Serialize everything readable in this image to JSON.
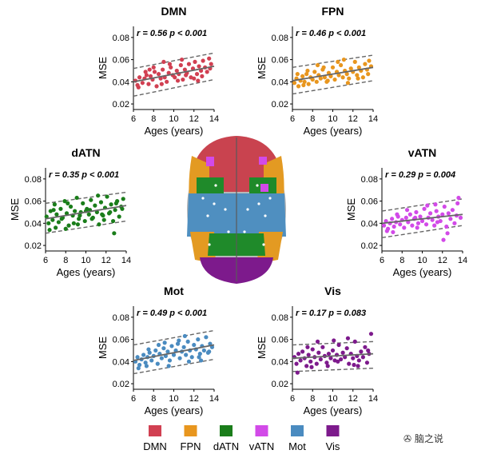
{
  "chart_data": [
    {
      "type": "scatter",
      "title": "DMN",
      "color": "#d14052",
      "xlabel": "Ages (years)",
      "ylabel": "MSE",
      "xlim": [
        6,
        14
      ],
      "ylim": [
        0.015,
        0.09
      ],
      "xticks": [
        "6",
        "8",
        "10",
        "12",
        "14"
      ],
      "yticks": [
        "0.02",
        "0.04",
        "0.06",
        "0.08"
      ],
      "stat_text": "r = 0.56  p < 0.001",
      "fit": {
        "x": [
          6,
          14
        ],
        "y": [
          0.04,
          0.054
        ]
      },
      "band": {
        "upper": [
          0.052,
          0.066
        ],
        "lower": [
          0.027,
          0.042
        ]
      },
      "x": [
        6.2,
        6.4,
        6.6,
        6.9,
        7.1,
        7.3,
        7.5,
        7.7,
        7.9,
        8.1,
        8.3,
        8.5,
        8.7,
        8.9,
        9.1,
        9.3,
        9.5,
        9.7,
        9.9,
        10.1,
        10.3,
        10.5,
        10.7,
        10.9,
        11.1,
        11.3,
        11.5,
        11.7,
        11.9,
        12.1,
        12.3,
        12.5,
        12.7,
        12.9,
        13.1,
        13.3,
        13.5,
        13.7,
        6.5,
        7.2,
        8.0,
        8.8,
        9.6,
        10.4,
        11.2,
        12.0,
        12.8,
        13.6,
        7.6,
        9.0,
        10.8,
        12.4
      ],
      "y": [
        0.041,
        0.037,
        0.044,
        0.039,
        0.043,
        0.046,
        0.038,
        0.045,
        0.042,
        0.049,
        0.036,
        0.047,
        0.043,
        0.051,
        0.044,
        0.04,
        0.048,
        0.053,
        0.046,
        0.044,
        0.05,
        0.047,
        0.055,
        0.042,
        0.051,
        0.048,
        0.056,
        0.044,
        0.052,
        0.058,
        0.047,
        0.054,
        0.05,
        0.059,
        0.053,
        0.049,
        0.061,
        0.056,
        0.035,
        0.049,
        0.053,
        0.038,
        0.056,
        0.041,
        0.046,
        0.043,
        0.045,
        0.052,
        0.051,
        0.058,
        0.06,
        0.041
      ]
    },
    {
      "type": "scatter",
      "title": "FPN",
      "color": "#e8961e",
      "xlabel": "Ages (years)",
      "ylabel": "MSE",
      "xlim": [
        6,
        14
      ],
      "ylim": [
        0.015,
        0.09
      ],
      "xticks": [
        "6",
        "8",
        "10",
        "12",
        "14"
      ],
      "yticks": [
        "0.02",
        "0.04",
        "0.06",
        "0.08"
      ],
      "stat_text": "r = 0.46  p < 0.001",
      "fit": {
        "x": [
          6,
          14
        ],
        "y": [
          0.041,
          0.053
        ]
      },
      "band": {
        "upper": [
          0.053,
          0.064
        ],
        "lower": [
          0.029,
          0.041
        ]
      },
      "x": [
        6.2,
        6.4,
        6.6,
        6.8,
        7.0,
        7.2,
        7.4,
        7.6,
        7.8,
        8.0,
        8.2,
        8.4,
        8.6,
        8.8,
        9.0,
        9.2,
        9.4,
        9.6,
        9.8,
        10.0,
        10.2,
        10.4,
        10.6,
        10.8,
        11.0,
        11.2,
        11.4,
        11.6,
        11.8,
        12.0,
        12.2,
        12.4,
        12.6,
        12.8,
        13.0,
        13.2,
        13.4,
        13.6,
        13.8,
        6.5,
        7.5,
        8.5,
        9.5,
        10.5,
        11.5,
        12.5,
        13.5,
        7.1,
        9.1,
        11.1
      ],
      "y": [
        0.039,
        0.043,
        0.036,
        0.041,
        0.045,
        0.04,
        0.047,
        0.038,
        0.044,
        0.042,
        0.049,
        0.04,
        0.046,
        0.043,
        0.051,
        0.044,
        0.04,
        0.048,
        0.045,
        0.053,
        0.042,
        0.049,
        0.046,
        0.055,
        0.044,
        0.05,
        0.047,
        0.043,
        0.052,
        0.049,
        0.058,
        0.046,
        0.053,
        0.05,
        0.044,
        0.056,
        0.051,
        0.059,
        0.054,
        0.047,
        0.05,
        0.055,
        0.041,
        0.058,
        0.039,
        0.043,
        0.047,
        0.037,
        0.053,
        0.06
      ]
    },
    {
      "type": "scatter",
      "title": "dATN",
      "color": "#1a7d1a",
      "xlabel": "Ages (years)",
      "ylabel": "MSE",
      "xlim": [
        6,
        14
      ],
      "ylim": [
        0.015,
        0.09
      ],
      "xticks": [
        "6",
        "8",
        "10",
        "12",
        "14"
      ],
      "yticks": [
        "0.02",
        "0.04",
        "0.06",
        "0.08"
      ],
      "stat_text": "r = 0.35  p < 0.001",
      "fit": {
        "x": [
          6,
          14
        ],
        "y": [
          0.044,
          0.056
        ]
      },
      "band": {
        "upper": [
          0.058,
          0.068
        ],
        "lower": [
          0.031,
          0.042
        ]
      },
      "x": [
        6.1,
        6.3,
        6.5,
        6.7,
        6.9,
        7.1,
        7.3,
        7.5,
        7.7,
        7.9,
        8.1,
        8.3,
        8.5,
        8.7,
        8.9,
        9.1,
        9.3,
        9.5,
        9.7,
        9.9,
        10.1,
        10.3,
        10.5,
        10.7,
        10.9,
        11.1,
        11.3,
        11.5,
        11.7,
        11.9,
        12.1,
        12.3,
        12.5,
        12.7,
        12.9,
        13.1,
        13.3,
        13.5,
        13.7,
        6.4,
        7.0,
        7.6,
        8.2,
        8.8,
        9.4,
        10.0,
        10.6,
        11.2,
        11.8,
        12.4,
        13.0,
        13.6,
        6.8,
        8.0,
        9.2,
        10.4,
        11.6,
        12.8
      ],
      "y": [
        0.046,
        0.04,
        0.051,
        0.043,
        0.057,
        0.048,
        0.041,
        0.053,
        0.045,
        0.06,
        0.049,
        0.038,
        0.055,
        0.047,
        0.051,
        0.063,
        0.044,
        0.05,
        0.058,
        0.042,
        0.053,
        0.048,
        0.061,
        0.045,
        0.056,
        0.05,
        0.039,
        0.059,
        0.047,
        0.054,
        0.064,
        0.049,
        0.057,
        0.042,
        0.052,
        0.06,
        0.046,
        0.055,
        0.062,
        0.034,
        0.036,
        0.044,
        0.058,
        0.04,
        0.047,
        0.051,
        0.044,
        0.065,
        0.043,
        0.05,
        0.058,
        0.053,
        0.052,
        0.035,
        0.039,
        0.052,
        0.048,
        0.031
      ]
    },
    {
      "type": "scatter",
      "title": "vATN",
      "color": "#d24ae8",
      "xlabel": "Ages (years)",
      "ylabel": "MSE",
      "xlim": [
        6,
        14
      ],
      "ylim": [
        0.015,
        0.09
      ],
      "xticks": [
        "6",
        "8",
        "10",
        "12",
        "14"
      ],
      "yticks": [
        "0.02",
        "0.04",
        "0.06",
        "0.08"
      ],
      "stat_text": "r = 0.29  p = 0.004",
      "fit": {
        "x": [
          6,
          14
        ],
        "y": [
          0.04,
          0.048
        ]
      },
      "band": {
        "upper": [
          0.051,
          0.062
        ],
        "lower": [
          0.027,
          0.038
        ]
      },
      "x": [
        6.2,
        6.4,
        6.6,
        6.8,
        7.0,
        7.2,
        7.4,
        7.6,
        7.8,
        8.0,
        8.2,
        8.4,
        8.6,
        8.8,
        9.0,
        9.2,
        9.4,
        9.6,
        9.8,
        10.0,
        10.2,
        10.4,
        10.6,
        10.8,
        11.0,
        11.2,
        11.4,
        11.6,
        11.8,
        12.0,
        12.2,
        12.4,
        12.6,
        12.8,
        13.0,
        13.2,
        13.4,
        13.6,
        13.8,
        6.5,
        7.5,
        8.5,
        9.5,
        10.5,
        11.5,
        12.5,
        13.5,
        7.1,
        9.3,
        11.3,
        12.1
      ],
      "y": [
        0.038,
        0.042,
        0.035,
        0.04,
        0.044,
        0.037,
        0.041,
        0.046,
        0.039,
        0.043,
        0.036,
        0.045,
        0.041,
        0.048,
        0.038,
        0.044,
        0.05,
        0.04,
        0.046,
        0.042,
        0.053,
        0.039,
        0.045,
        0.049,
        0.043,
        0.038,
        0.051,
        0.046,
        0.042,
        0.048,
        0.055,
        0.037,
        0.049,
        0.044,
        0.052,
        0.04,
        0.047,
        0.063,
        0.045,
        0.033,
        0.048,
        0.052,
        0.036,
        0.056,
        0.041,
        0.031,
        0.058,
        0.032,
        0.045,
        0.057,
        0.025
      ]
    },
    {
      "type": "scatter",
      "title": "Mot",
      "color": "#4a8bc0",
      "xlabel": "Ages (years)",
      "ylabel": "MSE",
      "xlim": [
        6,
        14
      ],
      "ylim": [
        0.015,
        0.09
      ],
      "xticks": [
        "6",
        "8",
        "10",
        "12",
        "14"
      ],
      "yticks": [
        "0.02",
        "0.04",
        "0.06",
        "0.08"
      ],
      "stat_text": "r = 0.49  p < 0.001",
      "fit": {
        "x": [
          6,
          14
        ],
        "y": [
          0.041,
          0.055
        ]
      },
      "band": {
        "upper": [
          0.055,
          0.068
        ],
        "lower": [
          0.029,
          0.042
        ]
      },
      "x": [
        6.2,
        6.4,
        6.6,
        6.8,
        7.0,
        7.2,
        7.4,
        7.6,
        7.8,
        8.0,
        8.2,
        8.4,
        8.6,
        8.8,
        9.0,
        9.2,
        9.4,
        9.6,
        9.8,
        10.0,
        10.2,
        10.4,
        10.6,
        10.8,
        11.0,
        11.2,
        11.4,
        11.6,
        11.8,
        12.0,
        12.2,
        12.4,
        12.6,
        12.8,
        13.0,
        13.2,
        13.4,
        13.6,
        13.8,
        6.5,
        7.5,
        8.5,
        9.5,
        10.5,
        11.5,
        12.5,
        13.5,
        7.3,
        9.1,
        11.1,
        12.7
      ],
      "y": [
        0.04,
        0.044,
        0.037,
        0.042,
        0.046,
        0.039,
        0.044,
        0.048,
        0.041,
        0.045,
        0.05,
        0.038,
        0.047,
        0.043,
        0.052,
        0.045,
        0.049,
        0.041,
        0.054,
        0.046,
        0.05,
        0.056,
        0.043,
        0.049,
        0.053,
        0.046,
        0.058,
        0.05,
        0.044,
        0.055,
        0.051,
        0.06,
        0.047,
        0.054,
        0.05,
        0.062,
        0.048,
        0.056,
        0.053,
        0.034,
        0.051,
        0.055,
        0.036,
        0.059,
        0.04,
        0.044,
        0.049,
        0.036,
        0.057,
        0.063,
        0.041
      ]
    },
    {
      "type": "scatter",
      "title": "Vis",
      "color": "#7d1a8c",
      "xlabel": "Ages (years)",
      "ylabel": "MSE",
      "xlim": [
        6,
        14
      ],
      "ylim": [
        0.015,
        0.09
      ],
      "xticks": [
        "6",
        "8",
        "10",
        "12",
        "14"
      ],
      "yticks": [
        "0.02",
        "0.04",
        "0.06",
        "0.08"
      ],
      "stat_text": "r = 0.17  p = 0.083",
      "fit": {
        "x": [
          6,
          14
        ],
        "y": [
          0.043,
          0.047
        ]
      },
      "band": {
        "upper": [
          0.055,
          0.058
        ],
        "lower": [
          0.031,
          0.034
        ]
      },
      "x": [
        6.2,
        6.4,
        6.6,
        6.8,
        7.0,
        7.2,
        7.4,
        7.6,
        7.8,
        8.0,
        8.2,
        8.4,
        8.6,
        8.8,
        9.0,
        9.2,
        9.4,
        9.6,
        9.8,
        10.0,
        10.2,
        10.4,
        10.6,
        10.8,
        11.0,
        11.2,
        11.4,
        11.6,
        11.8,
        12.0,
        12.2,
        12.4,
        12.6,
        12.8,
        13.0,
        13.2,
        13.4,
        13.6,
        13.8,
        6.5,
        7.5,
        8.5,
        9.5,
        10.5,
        11.5,
        12.5,
        13.5,
        7.9,
        10.1,
        12.1
      ],
      "y": [
        0.044,
        0.038,
        0.047,
        0.041,
        0.049,
        0.043,
        0.036,
        0.046,
        0.04,
        0.051,
        0.044,
        0.038,
        0.048,
        0.042,
        0.053,
        0.045,
        0.039,
        0.047,
        0.043,
        0.05,
        0.041,
        0.046,
        0.055,
        0.042,
        0.048,
        0.044,
        0.052,
        0.038,
        0.047,
        0.043,
        0.058,
        0.045,
        0.041,
        0.049,
        0.044,
        0.053,
        0.039,
        0.047,
        0.065,
        0.03,
        0.053,
        0.058,
        0.036,
        0.04,
        0.061,
        0.036,
        0.05,
        0.035,
        0.059,
        0.037
      ]
    }
  ],
  "legend": [
    {
      "label": "DMN",
      "color": "#d14052"
    },
    {
      "label": "FPN",
      "color": "#e8961e"
    },
    {
      "label": "dATN",
      "color": "#1a7d1a"
    },
    {
      "label": "vATN",
      "color": "#d24ae8"
    },
    {
      "label": "Mot",
      "color": "#4a8bc0"
    },
    {
      "label": "Vis",
      "color": "#7d1a8c"
    }
  ],
  "brain_image": {
    "description_icon": "brain-network-map-icon"
  },
  "watermark_text": "脑之说"
}
